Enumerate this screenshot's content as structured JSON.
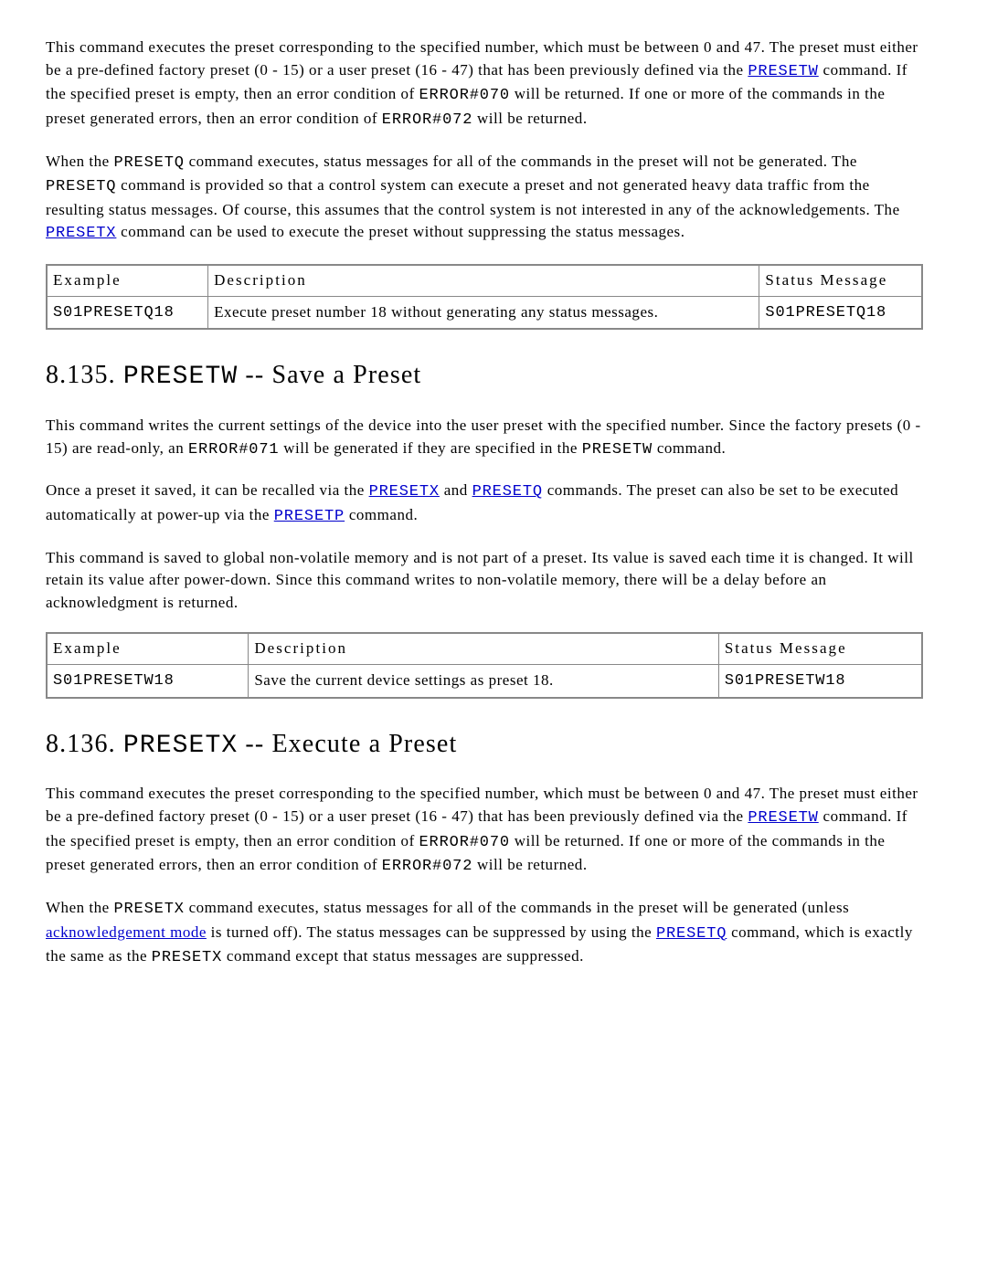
{
  "intro": {
    "p1_a": "This command executes the preset corresponding to the specified number, which must be between 0 and 47. The preset must either be a pre-defined factory preset (0 - 15) or a user preset (16 - 47) that has been previously defined via the ",
    "p1_link1": "PRESETW",
    "p1_b": " command. If the specified preset is empty, then an error condition of ",
    "p1_code1": "ERROR#070",
    "p1_c": " will be returned. If one or more of the commands in the preset generated errors, then an error condition of ",
    "p1_code2": "ERROR#072",
    "p1_d": " will be returned.",
    "p2_a": "When the ",
    "p2_code1": "PRESETQ",
    "p2_b": " command executes, status messages for all of the commands in the preset will not be generated. The ",
    "p2_code2": "PRESETQ",
    "p2_c": " command is provided so that a control system can execute a preset and not generated heavy data traffic from the resulting status messages. Of course, this assumes that the control system is not interested in any of the acknowledgements. The ",
    "p2_link1": "PRESETX",
    "p2_d": " command can be used to execute the preset without suppressing the status messages."
  },
  "table_headers": {
    "example": "Example",
    "description": "Description",
    "status": "Status Message"
  },
  "table1": {
    "example": "S01PRESETQ18",
    "description": "Execute preset number 18 without generating any status messages.",
    "status": "S01PRESETQ18"
  },
  "section_w": {
    "heading_num": "8.135. ",
    "heading_cmd": "PRESETW",
    "heading_rest": " -- Save a Preset",
    "p1_a": "This command writes the current settings of the device into the user preset with the specified number. Since the factory presets (0 - 15) are read-only, an ",
    "p1_code1": "ERROR#071",
    "p1_b": " will be generated if they are specified in the ",
    "p1_code2": "PRESETW",
    "p1_c": " command.",
    "p2_a": "Once a preset it saved, it can be recalled via the ",
    "p2_link1": "PRESETX",
    "p2_b": " and ",
    "p2_link2": "PRESETQ",
    "p2_c": " commands. The preset can also be set to be executed automatically at power-up via the ",
    "p2_link3": "PRESETP",
    "p2_d": " command.",
    "p3": "This command is saved to global non-volatile memory and is not part of a preset. Its value is saved each time it is changed. It will retain its value after power-down. Since this command writes to non-volatile memory, there will be a delay before an acknowledgment is returned."
  },
  "table2": {
    "example": "S01PRESETW18",
    "description": "Save the current device settings as preset 18.",
    "status": "S01PRESETW18"
  },
  "section_x": {
    "heading_num": "8.136. ",
    "heading_cmd": "PRESETX",
    "heading_rest": " -- Execute a Preset",
    "p1_a": "This command executes the preset corresponding to the specified number, which must be between 0 and 47. The preset must either be a pre-defined factory preset (0 - 15) or a user preset (16 - 47) that has been previously defined via the ",
    "p1_link1": "PRESETW",
    "p1_b": " command. If the specified preset is empty, then an error condition of ",
    "p1_code1": "ERROR#070",
    "p1_c": " will be returned. If one or more of the commands in the preset generated errors, then an error condition of ",
    "p1_code2": "ERROR#072",
    "p1_d": " will be returned.",
    "p2_a": "When the ",
    "p2_code1": "PRESETX",
    "p2_b": " command executes, status messages for all of the commands in the preset will be generated (unless ",
    "p2_link1": "acknowledgement mode",
    "p2_c": " is turned off). The status messages can be suppressed by using the ",
    "p2_link2": "PRESETQ",
    "p2_d": " command, which is exactly the same as the ",
    "p2_code2": "PRESETX",
    "p2_e": " command except that status messages are suppressed."
  }
}
